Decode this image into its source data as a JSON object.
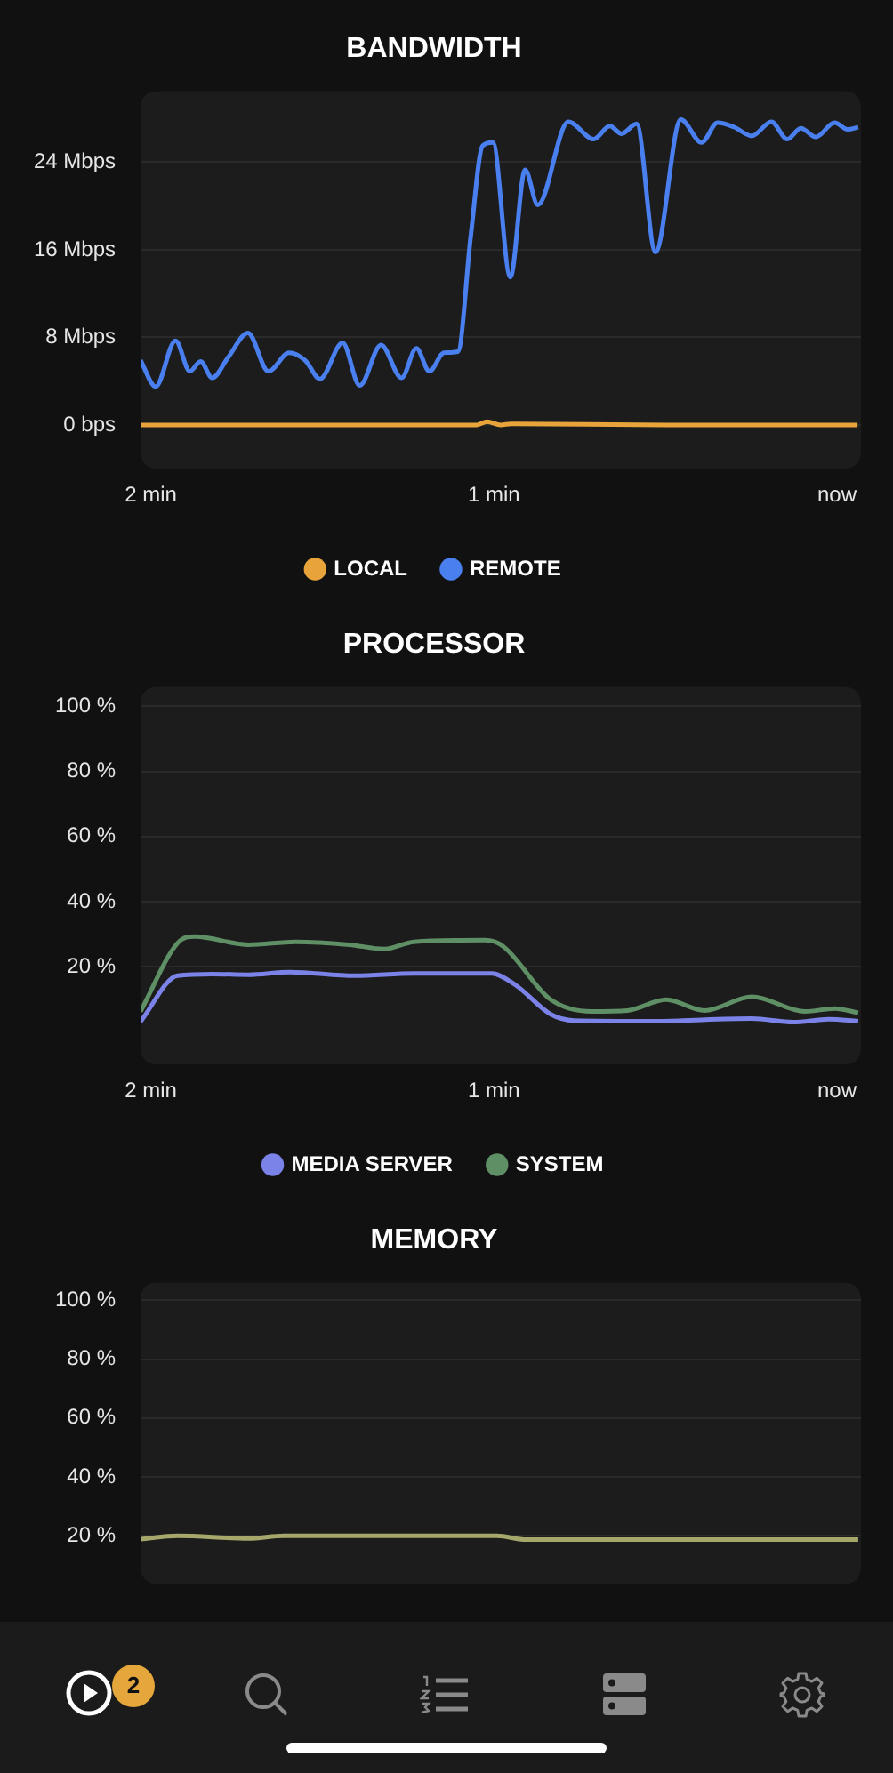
{
  "chart_data": [
    {
      "type": "line",
      "title": "BANDWIDTH",
      "xlim": [
        -2.03,
        0.07
      ],
      "xticks": [
        {
          "value": -2,
          "label": "2 min"
        },
        {
          "value": -1,
          "label": "1 min"
        },
        {
          "value": 0,
          "label": "now"
        }
      ],
      "ylim": [
        -4,
        30.5
      ],
      "yticks": [
        {
          "value": 0,
          "label": "0 bps"
        },
        {
          "value": 8,
          "label": "8 Mbps"
        },
        {
          "value": 16,
          "label": "16 Mbps"
        },
        {
          "value": 24,
          "label": "24 Mbps"
        }
      ],
      "grid": "y",
      "legend": "bottom",
      "series": [
        {
          "name": "LOCAL",
          "color": "#e8a43a",
          "x": [
            -2.03,
            -1.05,
            -1.02,
            -0.98,
            -0.95,
            -0.5,
            0.06
          ],
          "values": [
            0,
            0,
            0.3,
            0,
            0.1,
            0,
            0
          ]
        },
        {
          "name": "REMOTE",
          "color": "#4a7ff0",
          "x": [
            -2.03,
            -1.986,
            -1.928,
            -1.886,
            -1.855,
            -1.821,
            -1.774,
            -1.717,
            -1.657,
            -1.597,
            -1.55,
            -1.507,
            -1.441,
            -1.391,
            -1.329,
            -1.269,
            -1.226,
            -1.188,
            -1.145,
            -1.105,
            -1.067,
            -1.033,
            -1.003,
            -0.952,
            -0.909,
            -0.872,
            -0.783,
            -0.709,
            -0.662,
            -0.628,
            -0.584,
            -0.529,
            -0.455,
            -0.395,
            -0.348,
            -0.3,
            -0.248,
            -0.191,
            -0.145,
            -0.105,
            -0.062,
            -0.007,
            0.031,
            0.062
          ],
          "values": [
            5.9,
            3.5,
            7.7,
            4.9,
            5.8,
            4.3,
            6.2,
            8.4,
            4.9,
            6.6,
            5.9,
            4.2,
            7.5,
            3.6,
            7.3,
            4.3,
            7.0,
            4.9,
            6.6,
            6.7,
            17.4,
            25.5,
            25.8,
            13.5,
            23.3,
            20.1,
            27.7,
            26.1,
            27.3,
            26.6,
            27.5,
            15.8,
            27.9,
            25.8,
            27.6,
            27.2,
            26.4,
            27.7,
            26.1,
            27.1,
            26.3,
            27.6,
            27.0,
            27.2
          ]
        }
      ]
    },
    {
      "type": "line",
      "title": "PROCESSOR",
      "xlim": [
        -2.03,
        0.07
      ],
      "xticks": [
        {
          "value": -2,
          "label": "2 min"
        },
        {
          "value": -1,
          "label": "1 min"
        },
        {
          "value": 0,
          "label": "now"
        }
      ],
      "ylim": [
        -10,
        106
      ],
      "yticks": [
        {
          "value": 20,
          "label": "20 %"
        },
        {
          "value": 40,
          "label": "40 %"
        },
        {
          "value": 60,
          "label": "60 %"
        },
        {
          "value": 80,
          "label": "80 %"
        },
        {
          "value": 100,
          "label": "100 %"
        }
      ],
      "grid": "y",
      "legend": "bottom",
      "series": [
        {
          "name": "MEDIA SERVER",
          "color": "#7b83e8",
          "x": [
            -2.03,
            -1.922,
            -1.819,
            -1.716,
            -1.595,
            -1.405,
            -1.233,
            -1.007,
            -0.938,
            -0.834,
            -0.766,
            -0.541,
            -0.248,
            -0.128,
            -0.024,
            0.062
          ],
          "values": [
            3.2,
            17.3,
            17.8,
            17.6,
            18.4,
            17.3,
            18.0,
            18.0,
            14.5,
            5.4,
            3.5,
            3.3,
            4.1,
            3.0,
            3.9,
            3.3
          ]
        },
        {
          "name": "SYSTEM",
          "color": "#5e8f65",
          "x": [
            -2.03,
            -1.922,
            -1.871,
            -1.716,
            -1.578,
            -1.422,
            -1.319,
            -1.233,
            -1.026,
            -0.974,
            -0.834,
            -0.714,
            -0.61,
            -0.498,
            -0.386,
            -0.248,
            -0.093,
            -0.007,
            0.062
          ],
          "values": [
            6.3,
            27.3,
            29.3,
            26.8,
            27.7,
            26.8,
            25.5,
            27.7,
            28.2,
            26.4,
            9.9,
            6.3,
            6.6,
            9.9,
            6.6,
            10.8,
            6.3,
            7.2,
            5.9
          ]
        }
      ]
    },
    {
      "type": "line",
      "title": "MEMORY",
      "xlim": [
        -2.03,
        0.07
      ],
      "ylim": [
        3.6,
        106
      ],
      "yticks": [
        {
          "value": 20,
          "label": "20 %"
        },
        {
          "value": 40,
          "label": "40 %"
        },
        {
          "value": 60,
          "label": "60 %"
        },
        {
          "value": 80,
          "label": "80 %"
        },
        {
          "value": 100,
          "label": "100 %"
        }
      ],
      "grid": "y",
      "tick_labels": "y",
      "annotations": [
        "2"
      ],
      "series": [
        {
          "color": "#a5a86a",
          "x": [
            -2.03,
            -1.922,
            -1.716,
            -1.612,
            -0.991,
            -0.905,
            0.062
          ],
          "values": [
            18.9,
            20.0,
            19.1,
            20.0,
            20.0,
            18.7,
            18.7
          ]
        }
      ]
    }
  ]
}
